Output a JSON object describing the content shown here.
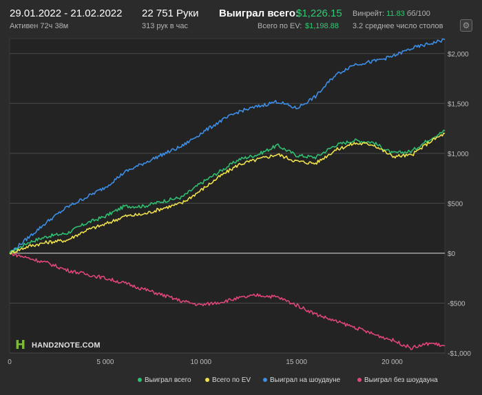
{
  "header": {
    "date_range": "29.01.2022 - 21.02.2022",
    "active": "Активен 72ч 38м",
    "hands": "22 751 Руки",
    "hands_per_hour": "313 рук в час",
    "won_label": "Выиграл всего:",
    "won_value": "$1,226.15",
    "ev_label": "Всего по EV:",
    "ev_value": "$1,198.88",
    "winrate_label": "Винрейт:",
    "winrate_value": "11.83",
    "winrate_rest": "бб/100",
    "tables": "3.2 среднее число столов",
    "settings_icon": "gear-icon"
  },
  "logo": {
    "icon": "H",
    "text": "HAND2NOTE.COM"
  },
  "colors": {
    "won": "#2fbf71",
    "ev": "#f0e24a",
    "showdown": "#3d8ee6",
    "nonshowdown": "#e0457b",
    "zero": "#cfcfcf",
    "grid": "#4a4a4a"
  },
  "chart_data": {
    "type": "line",
    "xlabel": "",
    "ylabel": "",
    "xlim": [
      0,
      22751
    ],
    "ylim": [
      -1000,
      2150
    ],
    "x_ticks": [
      0,
      5000,
      10000,
      15000,
      20000
    ],
    "x_tick_labels": [
      "0",
      "5 000",
      "10 000",
      "15 000",
      "20 000"
    ],
    "y_ticks": [
      -1000,
      -500,
      0,
      500,
      1000,
      1500,
      2000
    ],
    "y_tick_labels": [
      "-$1,000",
      "-$500",
      "$0",
      "$500",
      "$1,000",
      "$1,500",
      "$2,000"
    ],
    "grid": true,
    "legend_position": "bottom-right",
    "series": [
      {
        "name": "Выиграл всего",
        "x": [
          0,
          1000,
          2000,
          3000,
          4000,
          5000,
          6000,
          7000,
          8000,
          9000,
          10000,
          11000,
          12000,
          13000,
          14000,
          15000,
          16000,
          17000,
          18000,
          19000,
          20000,
          21000,
          22000,
          22751
        ],
        "values": [
          0,
          110,
          170,
          200,
          300,
          370,
          470,
          470,
          520,
          560,
          700,
          820,
          940,
          990,
          1080,
          980,
          960,
          1080,
          1130,
          1110,
          1000,
          1020,
          1150,
          1226
        ]
      },
      {
        "name": "Всего по EV",
        "x": [
          0,
          1000,
          2000,
          3000,
          4000,
          5000,
          6000,
          7000,
          8000,
          9000,
          10000,
          11000,
          12000,
          13000,
          14000,
          15000,
          16000,
          17000,
          18000,
          19000,
          20000,
          21000,
          22000,
          22751
        ],
        "values": [
          0,
          70,
          110,
          130,
          230,
          290,
          370,
          390,
          450,
          500,
          630,
          770,
          890,
          940,
          990,
          920,
          900,
          1030,
          1100,
          1090,
          970,
          980,
          1120,
          1199
        ]
      },
      {
        "name": "Выиграл на шоудауне",
        "x": [
          0,
          1000,
          2000,
          3000,
          4000,
          5000,
          6000,
          7000,
          8000,
          9000,
          10000,
          11000,
          12000,
          13000,
          14000,
          15000,
          16000,
          17000,
          18000,
          19000,
          20000,
          21000,
          22000,
          22751
        ],
        "values": [
          0,
          160,
          320,
          460,
          560,
          660,
          810,
          900,
          990,
          1070,
          1200,
          1320,
          1420,
          1470,
          1520,
          1450,
          1570,
          1780,
          1890,
          1920,
          1970,
          2050,
          2100,
          2140
        ]
      },
      {
        "name": "Выиграл без шоудауна",
        "x": [
          0,
          1000,
          2000,
          3000,
          4000,
          5000,
          6000,
          7000,
          8000,
          9000,
          10000,
          11000,
          12000,
          13000,
          14000,
          15000,
          16000,
          17000,
          18000,
          19000,
          20000,
          21000,
          22000,
          22751
        ],
        "values": [
          0,
          -50,
          -100,
          -170,
          -210,
          -250,
          -300,
          -360,
          -420,
          -480,
          -520,
          -490,
          -450,
          -420,
          -440,
          -520,
          -610,
          -680,
          -740,
          -810,
          -870,
          -950,
          -900,
          -930
        ]
      }
    ]
  }
}
